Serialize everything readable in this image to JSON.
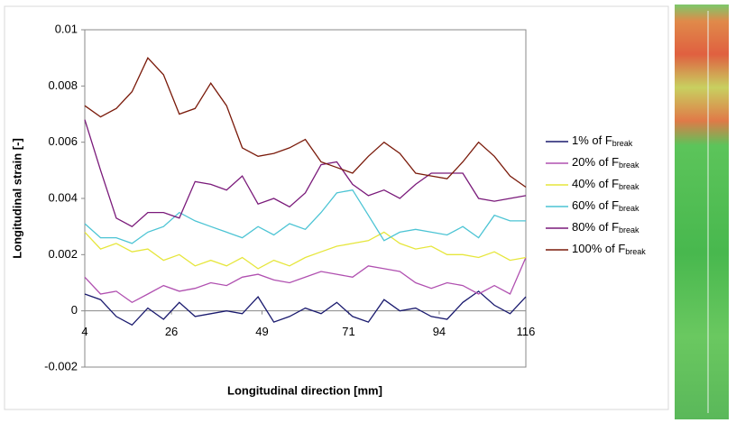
{
  "chart_data": {
    "type": "line",
    "y_label": "Longitudinal strain [-]",
    "x_label": "Longitudinal direction [mm]",
    "xlim": [
      4,
      116
    ],
    "xticks": [
      4,
      26,
      49,
      71,
      94,
      116
    ],
    "ylim": [
      -0.002,
      0.01
    ],
    "yticks": [
      -0.002,
      0,
      0.002,
      0.004,
      0.006,
      0.008,
      0.01
    ],
    "x": [
      4,
      8,
      12,
      16,
      20,
      24,
      28,
      32,
      36,
      40,
      44,
      48,
      52,
      56,
      60,
      64,
      68,
      72,
      76,
      80,
      84,
      88,
      92,
      96,
      100,
      104,
      108,
      112,
      116
    ],
    "series": [
      {
        "name": "1% of F",
        "subscript": "break",
        "color": "#1a1a6e",
        "values": [
          0.0006,
          0.0004,
          -0.0002,
          -0.0005,
          0.0001,
          -0.0003,
          0.0003,
          -0.0002,
          -0.0001,
          0,
          -0.0001,
          0.0005,
          -0.0004,
          -0.0002,
          0.0001,
          -0.0001,
          0.0003,
          -0.0002,
          -0.0004,
          0.0004,
          0,
          0.0001,
          -0.0002,
          -0.0003,
          0.0003,
          0.0007,
          0.0002,
          -0.0001,
          0.0005
        ]
      },
      {
        "name": "20% of F",
        "subscript": "break",
        "color": "#b050b0",
        "values": [
          0.0012,
          0.0006,
          0.0007,
          0.0003,
          0.0006,
          0.0009,
          0.0007,
          0.0008,
          0.001,
          0.0009,
          0.0012,
          0.0013,
          0.0011,
          0.001,
          0.0012,
          0.0014,
          0.0013,
          0.0012,
          0.0016,
          0.0015,
          0.0014,
          0.001,
          0.0008,
          0.001,
          0.0009,
          0.0006,
          0.0009,
          0.0006,
          0.0019
        ]
      },
      {
        "name": "40% of F",
        "subscript": "break",
        "color": "#e6e63c",
        "values": [
          0.0028,
          0.0022,
          0.0024,
          0.0021,
          0.0022,
          0.0018,
          0.002,
          0.0016,
          0.0018,
          0.0016,
          0.0019,
          0.0015,
          0.0018,
          0.0016,
          0.0019,
          0.0021,
          0.0023,
          0.0024,
          0.0025,
          0.0028,
          0.0024,
          0.0022,
          0.0023,
          0.002,
          0.002,
          0.0019,
          0.0021,
          0.0018,
          0.0019
        ]
      },
      {
        "name": "60% of F",
        "subscript": "break",
        "color": "#4cc4d4",
        "values": [
          0.0031,
          0.0026,
          0.0026,
          0.0024,
          0.0028,
          0.003,
          0.0035,
          0.0032,
          0.003,
          0.0028,
          0.0026,
          0.003,
          0.0027,
          0.0031,
          0.0029,
          0.0035,
          0.0042,
          0.0043,
          0.0034,
          0.0025,
          0.0028,
          0.0029,
          0.0028,
          0.0027,
          0.003,
          0.0026,
          0.0034,
          0.0032,
          0.0032
        ]
      },
      {
        "name": "80% of F",
        "subscript": "break",
        "color": "#7a1a7a",
        "values": [
          0.0068,
          0.005,
          0.0033,
          0.003,
          0.0035,
          0.0035,
          0.0033,
          0.0046,
          0.0045,
          0.0043,
          0.0048,
          0.0038,
          0.004,
          0.0037,
          0.0042,
          0.0052,
          0.0053,
          0.0045,
          0.0041,
          0.0043,
          0.004,
          0.0045,
          0.0049,
          0.0049,
          0.0049,
          0.004,
          0.0039,
          0.004,
          0.0041
        ]
      },
      {
        "name": "100% of F",
        "subscript": "break",
        "color": "#7a1a0a",
        "values": [
          0.0073,
          0.0069,
          0.0072,
          0.0078,
          0.009,
          0.0084,
          0.007,
          0.0072,
          0.0081,
          0.0073,
          0.0058,
          0.0055,
          0.0056,
          0.0058,
          0.0061,
          0.0053,
          0.0051,
          0.0049,
          0.0055,
          0.006,
          0.0056,
          0.0049,
          0.0048,
          0.0047,
          0.0053,
          0.006,
          0.0055,
          0.0048,
          0.0044
        ]
      }
    ]
  }
}
